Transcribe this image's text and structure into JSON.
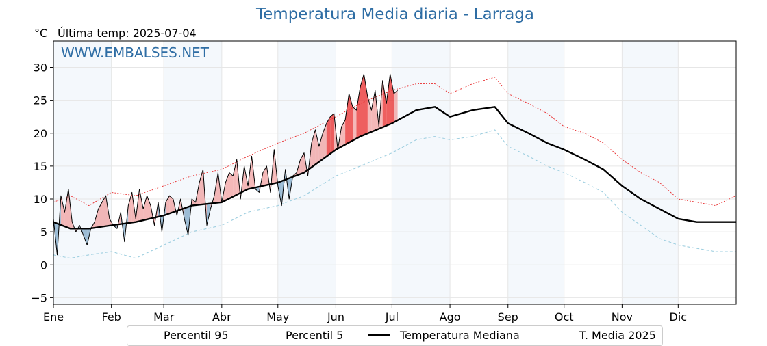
{
  "header": {
    "title": "Temperatura Media diaria - Larraga",
    "unit": "°C",
    "last_temp": "Última temp: 2025-07-04"
  },
  "watermark": "WWW.EMBALSES.NET",
  "colors": {
    "title": "#2e6da4",
    "watermark": "#2e6da4",
    "p95": "#e8292a",
    "p5": "#9fcfe0",
    "median": "#000000",
    "current": "#000000",
    "above": "#f0a0a0",
    "above_strong": "#e8292a",
    "below": "#7fa8c8",
    "band": "#dfeaf5"
  },
  "legend": [
    {
      "label": "Percentil 95",
      "style": "p95"
    },
    {
      "label": "Percentil 5",
      "style": "p5"
    },
    {
      "label": "Temperatura Mediana",
      "style": "median"
    },
    {
      "label": "T. Media 2025",
      "style": "current"
    }
  ],
  "chart_data": {
    "type": "line",
    "title": "Temperatura Media diaria - Larraga",
    "ylabel": "°C",
    "ylim": [
      -6,
      34
    ],
    "xlim": [
      1,
      366
    ],
    "yticks": [
      -5,
      0,
      5,
      10,
      15,
      20,
      25,
      30
    ],
    "ytick_labels": [
      "−5",
      "0",
      "5",
      "10",
      "15",
      "20",
      "25",
      "30"
    ],
    "month_labels": [
      "Ene",
      "Feb",
      "Mar",
      "Abr",
      "May",
      "Jun",
      "Jul",
      "Ago",
      "Sep",
      "Oct",
      "Nov",
      "Dic"
    ],
    "month_start_days": [
      1,
      32,
      60,
      91,
      121,
      152,
      182,
      213,
      244,
      274,
      305,
      335
    ],
    "grid": true,
    "legend_position": "bottom",
    "series": [
      {
        "name": "Percentil 95",
        "style": "p95",
        "x": [
          1,
          10,
          20,
          32,
          45,
          60,
          75,
          91,
          105,
          121,
          135,
          152,
          165,
          182,
          195,
          205,
          213,
          225,
          237,
          244,
          255,
          265,
          274,
          285,
          295,
          305,
          315,
          325,
          335,
          345,
          355,
          366
        ],
        "y": [
          9.5,
          10.5,
          9.0,
          11.0,
          10.5,
          12.0,
          13.5,
          14.5,
          16.5,
          18.5,
          20.0,
          22.5,
          24.5,
          26.5,
          27.5,
          27.5,
          26.0,
          27.5,
          28.5,
          26.0,
          24.5,
          23.0,
          21.0,
          20.0,
          18.5,
          16.0,
          14.0,
          12.5,
          10.0,
          9.5,
          9.0,
          10.5
        ]
      },
      {
        "name": "Percentil 5",
        "style": "p5",
        "x": [
          1,
          10,
          20,
          32,
          45,
          60,
          75,
          91,
          105,
          121,
          135,
          152,
          165,
          182,
          195,
          205,
          213,
          225,
          237,
          244,
          255,
          265,
          274,
          285,
          295,
          305,
          315,
          325,
          335,
          345,
          355,
          366
        ],
        "y": [
          1.5,
          1.0,
          1.5,
          2.0,
          1.0,
          3.0,
          5.0,
          6.0,
          8.0,
          9.0,
          10.5,
          13.5,
          15.0,
          17.0,
          19.0,
          19.5,
          19.0,
          19.5,
          20.5,
          18.0,
          16.5,
          15.0,
          14.0,
          12.5,
          11.0,
          8.0,
          6.0,
          4.0,
          3.0,
          2.5,
          2.0,
          2.0
        ]
      },
      {
        "name": "Temperatura Mediana",
        "style": "median",
        "x": [
          1,
          10,
          20,
          32,
          45,
          60,
          75,
          91,
          105,
          121,
          135,
          152,
          165,
          182,
          195,
          205,
          213,
          225,
          237,
          244,
          255,
          265,
          274,
          285,
          295,
          305,
          315,
          325,
          335,
          345,
          355,
          366
        ],
        "y": [
          6.5,
          5.5,
          5.5,
          6.0,
          6.5,
          7.5,
          9.0,
          9.5,
          11.5,
          12.5,
          14.0,
          17.5,
          19.5,
          21.5,
          23.5,
          24.0,
          22.5,
          23.5,
          24.0,
          21.5,
          20.0,
          18.5,
          17.5,
          16.0,
          14.5,
          12.0,
          10.0,
          8.5,
          7.0,
          6.5,
          6.5,
          6.5
        ]
      },
      {
        "name": "T. Media 2025",
        "style": "current",
        "x": [
          1,
          3,
          5,
          7,
          9,
          11,
          13,
          15,
          17,
          19,
          21,
          23,
          25,
          27,
          29,
          31,
          33,
          35,
          37,
          39,
          41,
          43,
          45,
          47,
          49,
          51,
          53,
          55,
          57,
          59,
          61,
          63,
          65,
          67,
          69,
          71,
          73,
          75,
          77,
          79,
          81,
          83,
          85,
          87,
          89,
          91,
          93,
          95,
          97,
          99,
          101,
          103,
          105,
          107,
          109,
          111,
          113,
          115,
          117,
          119,
          121,
          123,
          125,
          127,
          129,
          131,
          133,
          135,
          137,
          139,
          141,
          143,
          145,
          147,
          149,
          151,
          153,
          155,
          157,
          159,
          161,
          163,
          165,
          167,
          169,
          171,
          173,
          175,
          177,
          179,
          181,
          183,
          185
        ],
        "y": [
          7.0,
          1.5,
          10.5,
          8.0,
          11.5,
          6.5,
          5.0,
          6.0,
          4.5,
          3.0,
          5.5,
          6.5,
          8.5,
          9.5,
          10.5,
          7.0,
          6.0,
          5.5,
          8.0,
          3.5,
          9.0,
          11.0,
          7.0,
          11.5,
          8.5,
          10.5,
          9.0,
          6.0,
          9.5,
          5.0,
          9.5,
          10.5,
          10.0,
          7.5,
          10.0,
          7.0,
          4.5,
          10.0,
          9.5,
          12.5,
          14.5,
          6.0,
          8.5,
          10.5,
          14.0,
          9.5,
          12.5,
          14.0,
          13.5,
          16.0,
          10.0,
          15.0,
          12.0,
          16.5,
          11.5,
          11.0,
          14.0,
          15.0,
          11.0,
          17.5,
          12.0,
          9.0,
          14.5,
          10.0,
          13.5,
          14.0,
          16.0,
          17.0,
          13.5,
          18.5,
          20.5,
          18.0,
          20.0,
          21.5,
          22.5,
          23.0,
          17.5,
          21.0,
          22.0,
          26.0,
          24.0,
          23.5,
          27.0,
          29.0,
          25.5,
          23.5,
          26.5,
          21.0,
          28.0,
          24.5,
          29.0,
          26.0,
          26.5
        ]
      }
    ]
  }
}
